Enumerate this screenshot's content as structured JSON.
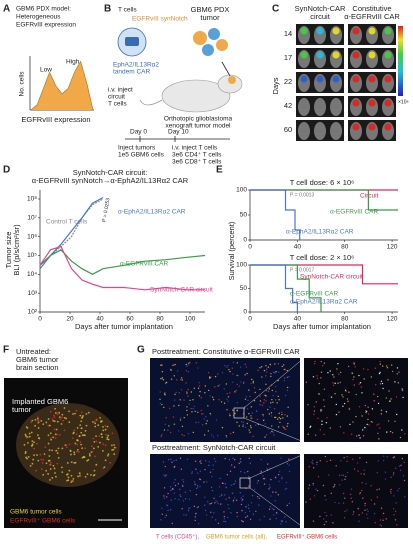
{
  "A": {
    "label": "A",
    "title1": "GBM6 PDX model:",
    "title2": "Heterogeneous",
    "title3": "EGFRvIII expression",
    "ylabel": "No. cells",
    "xlabel": "EGFRvIII expression",
    "low": "Low",
    "high": "High",
    "histogram": {
      "xlim": [
        0,
        10
      ],
      "ylim": [
        0,
        20
      ],
      "x": [
        0,
        1,
        2,
        3,
        4,
        5,
        6,
        7,
        8,
        9,
        10
      ],
      "values": [
        0,
        2,
        8,
        14,
        9,
        6,
        8,
        14,
        18,
        10,
        0
      ],
      "color": "#f0a848"
    }
  },
  "B": {
    "label": "B",
    "tcells": "T cells",
    "synnotch": "EGFRvIII synNotch",
    "car1": "EphA2/IL13Rα2",
    "car2": "tandem CAR",
    "tumor1": "GBM6 PDX",
    "tumor2": "tumor",
    "inject1": "i.v. inject",
    "inject2": "circuit",
    "inject3": "T cells",
    "model1": "Orthotopic glioblastoma",
    "model2": "xenograft tumor model",
    "day0": "Day 0",
    "day10": "Day 10",
    "inj_tumor1": "Inject tumors",
    "inj_tumor2": "1e5 GBM6 cells",
    "inj_t1": "i.v. inject T cells",
    "inj_t2": "3e6 CD4⁺ T cells",
    "inj_t3": "3e6 CD8⁺ T cells"
  },
  "C": {
    "label": "C",
    "col1a": "SynNotch-CAR",
    "col1b": "circuit",
    "col2a": "Constitutive",
    "col2b": "α-EGFRvIII CAR",
    "ylabel": "Days",
    "days": [
      "14",
      "17",
      "22",
      "42",
      "60"
    ],
    "cbar": "×10⁸"
  },
  "D": {
    "label": "D",
    "title1": "SynNotch-CAR circuit:",
    "title2": "α-EGFRvIII synNotch→α-EphA2/IL13Rα2 CAR",
    "ylabel1": "Tumor size",
    "ylabel2": "BLI (p/s/cm²/sr)",
    "xlabel": "Days after tumor implantation",
    "pvalue": "P = 0.0253",
    "chart": {
      "type": "line",
      "log_y": true,
      "xlim": [
        0,
        110
      ],
      "xticks": [
        0,
        20,
        40,
        60,
        80,
        100
      ],
      "ylim": [
        100,
        300000000
      ],
      "yticks": [
        {
          "value": 100,
          "label": "10²"
        },
        {
          "value": 1000,
          "label": "10³"
        },
        {
          "value": 10000,
          "label": "10⁴"
        },
        {
          "value": 100000,
          "label": "10⁵"
        },
        {
          "value": 1000000,
          "label": "10⁶"
        },
        {
          "value": 10000000,
          "label": "10⁷"
        },
        {
          "value": 100000000,
          "label": "10⁸"
        }
      ],
      "series": [
        {
          "name": "Control T cells",
          "color": "#8c8c8c",
          "x": [
            0,
            7,
            14,
            21,
            28,
            35,
            42
          ],
          "values": [
            30000,
            100000,
            300000,
            1000000,
            10000000,
            50000000,
            100000000
          ]
        },
        {
          "name": "α-EphA2/IL13Rα2 CAR",
          "color": "#4a78c8",
          "x": [
            0,
            7,
            14,
            21,
            28,
            35,
            42
          ],
          "values": [
            20000,
            100000,
            400000,
            2000000,
            10000000,
            60000000,
            120000000
          ]
        },
        {
          "name": "α-EGFRvIII CAR",
          "color": "#3a9a48",
          "x": [
            0,
            7,
            14,
            21,
            28,
            35,
            42,
            56,
            70,
            84,
            98,
            110
          ],
          "values": [
            30000,
            100000,
            200000,
            50000,
            20000,
            10000,
            20000,
            30000,
            50000,
            60000,
            80000,
            100000
          ]
        },
        {
          "name": "SynNotch-CAR circuit",
          "color": "#e0468a",
          "x": [
            0,
            7,
            14,
            21,
            28,
            35,
            42,
            56,
            70,
            84,
            98,
            110
          ],
          "values": [
            30000,
            200000,
            300000,
            20000,
            5000,
            3000,
            2000,
            2000,
            1500,
            2000,
            1500,
            1500
          ]
        }
      ]
    }
  },
  "E": {
    "label": "E",
    "ylabel": "Survival (percent)",
    "xlabel": "Days after tumor implantation",
    "charts": [
      {
        "type": "line",
        "title": "T cell dose:  6 × 10⁶",
        "pvalue": "P = 0.0013",
        "xlim": [
          0,
          125
        ],
        "xticks": [
          0,
          40,
          80,
          120
        ],
        "ylim": [
          0,
          100
        ],
        "yticks": [
          0,
          50,
          100
        ],
        "series": [
          {
            "name": "Circuit",
            "color": "#d42a5a",
            "x": [
              0,
              125
            ],
            "values": [
              100,
              100
            ]
          },
          {
            "name": "α-EGFRvIII CAR",
            "color": "#3a9a48",
            "x": [
              0,
              100,
              100,
              125
            ],
            "values": [
              100,
              100,
              60,
              60
            ]
          },
          {
            "name": "α-EphA2/IL13Rα2 CAR",
            "color": "#4a78c8",
            "x": [
              0,
              30,
              30,
              38,
              38,
              42,
              42
            ],
            "values": [
              100,
              100,
              60,
              60,
              20,
              20,
              0
            ]
          }
        ]
      },
      {
        "type": "line",
        "title": "T cell dose:  2 × 10⁶",
        "pvalue": "P = 0.0017",
        "xlim": [
          0,
          125
        ],
        "xticks": [
          0,
          40,
          80,
          120
        ],
        "ylim": [
          0,
          100
        ],
        "yticks": [
          0,
          50,
          100
        ],
        "series": [
          {
            "name": "SynNotch-CAR circuit",
            "color": "#d42a5a",
            "x": [
              0,
              95,
              95,
              125
            ],
            "values": [
              100,
              100,
              60,
              60
            ]
          },
          {
            "name": "α-EGFRvIII CAR",
            "color": "#3a9a48",
            "x": [
              0,
              40,
              40,
              50,
              50,
              60,
              60
            ],
            "values": [
              100,
              100,
              70,
              70,
              30,
              30,
              0
            ]
          },
          {
            "name": "α-EphA2/IL13Rα2 CAR",
            "color": "#4a78c8",
            "x": [
              0,
              30,
              30,
              36,
              36,
              40,
              40
            ],
            "values": [
              100,
              100,
              50,
              50,
              20,
              20,
              0
            ]
          }
        ]
      }
    ]
  },
  "F": {
    "label": "F",
    "title1": "Untreated:",
    "title2": "GBM6 tumor",
    "title3": "brain section",
    "implanted1": "Implanted GBM6",
    "implanted2": "tumor",
    "legend1": "GBM6 tumor cells",
    "legend2": "EGFRvIII⁺ GBM6 cells"
  },
  "G": {
    "label": "G",
    "title_top": "Posttreatment: Constitutive α-EGFRvIII CAR",
    "title_bottom": "Posttreatment: SynNotch-CAR circuit",
    "legend1": "T cells (CD45⁺),",
    "legend2": "GBM6 tumor cells (all),",
    "legend3": "EGFRvIII⁺ GBM6 cells"
  }
}
